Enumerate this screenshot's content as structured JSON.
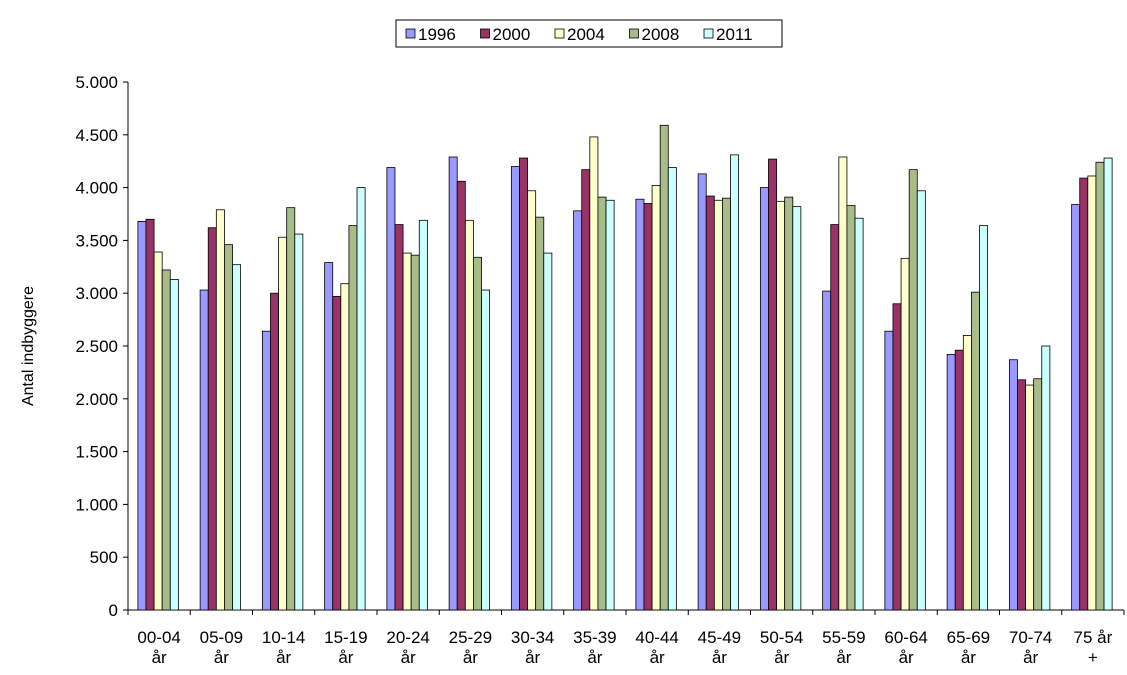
{
  "chart_data": {
    "type": "bar",
    "title": "",
    "xlabel": "",
    "ylabel": "Antal indbyggere",
    "ylim": [
      0,
      5000
    ],
    "yticks": [
      0,
      500,
      1000,
      1500,
      2000,
      2500,
      3000,
      3500,
      4000,
      4500,
      5000
    ],
    "ytick_labels": [
      "0",
      "500",
      "1.000",
      "1.500",
      "2.000",
      "2.500",
      "3.000",
      "3.500",
      "4.000",
      "4.500",
      "5.000"
    ],
    "legend_position": "top-center",
    "grid": false,
    "categories": [
      [
        "00-04",
        "år"
      ],
      [
        "05-09",
        "år"
      ],
      [
        "10-14",
        "år"
      ],
      [
        "15-19",
        "år"
      ],
      [
        "20-24",
        "år"
      ],
      [
        "25-29",
        "år"
      ],
      [
        "30-34",
        "år"
      ],
      [
        "35-39",
        "år"
      ],
      [
        "40-44",
        "år"
      ],
      [
        "45-49",
        "år"
      ],
      [
        "50-54",
        "år"
      ],
      [
        "55-59",
        "år"
      ],
      [
        "60-64",
        "år"
      ],
      [
        "65-69",
        "år"
      ],
      [
        "70-74",
        "år"
      ],
      [
        "75 år",
        "+"
      ]
    ],
    "series": [
      {
        "name": "1996",
        "color": "#9999FF",
        "values": [
          3680,
          3030,
          2640,
          3290,
          4190,
          4290,
          4200,
          3780,
          3890,
          4130,
          4000,
          3020,
          2640,
          2420,
          2370,
          3840
        ]
      },
      {
        "name": "2000",
        "color": "#993366",
        "values": [
          3700,
          3620,
          3000,
          2970,
          3650,
          4060,
          4280,
          4170,
          3850,
          3920,
          4270,
          3650,
          2900,
          2460,
          2180,
          4090
        ]
      },
      {
        "name": "2004",
        "color": "#FFFFCC",
        "values": [
          3390,
          3790,
          3530,
          3090,
          3380,
          3690,
          3970,
          4480,
          4020,
          3880,
          3870,
          4290,
          3330,
          2600,
          2130,
          4110
        ]
      },
      {
        "name": "2008",
        "color": "#A8BC8A",
        "values": [
          3220,
          3460,
          3810,
          3640,
          3360,
          3340,
          3720,
          3910,
          4590,
          3900,
          3910,
          3830,
          4170,
          3010,
          2190,
          4240
        ]
      },
      {
        "name": "2011",
        "color": "#CCFFFF",
        "values": [
          3130,
          3270,
          3560,
          4000,
          3690,
          3030,
          3380,
          3880,
          4190,
          4310,
          3820,
          3710,
          3970,
          3640,
          2500,
          4280
        ]
      }
    ]
  }
}
